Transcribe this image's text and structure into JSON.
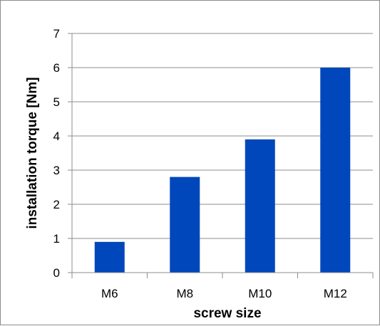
{
  "chart_data": {
    "type": "bar",
    "title": "",
    "xlabel": "screw size",
    "ylabel": "installation torque [Nm]",
    "categories": [
      "M6",
      "M8",
      "M10",
      "M12"
    ],
    "values": [
      0.9,
      2.8,
      3.9,
      6.0
    ],
    "ylim": [
      0,
      7
    ],
    "yticks": [
      0,
      1,
      2,
      3,
      4,
      5,
      6,
      7
    ],
    "grid": true,
    "legend": "none",
    "bar_color": "#0047bb",
    "grid_color": "#8c8c8c"
  }
}
